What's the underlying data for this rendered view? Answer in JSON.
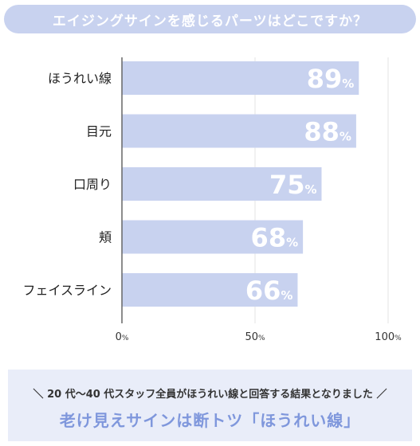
{
  "header": {
    "title": "エイジングサインを感じるパーツはどこですか？"
  },
  "chart_data": {
    "type": "bar",
    "orientation": "horizontal",
    "categories": [
      "ほうれい線",
      "目元",
      "口周り",
      "頬",
      "フェイスライン"
    ],
    "values": [
      89,
      88,
      75,
      68,
      66
    ],
    "value_suffix": "%",
    "xlim": [
      0,
      100
    ],
    "xticks": [
      {
        "value": 0,
        "label": "0",
        "unit": "%"
      },
      {
        "value": 50,
        "label": "50",
        "unit": "%"
      },
      {
        "value": 100,
        "label": "100",
        "unit": "%"
      }
    ],
    "grid": true,
    "colors": {
      "bar": "#c8d2ef",
      "value_text": "#ffffff",
      "grid": "#e3e3e3",
      "axis": "#666666"
    }
  },
  "footer": {
    "subtitle": "＼ 20 代〜40 代スタッフ全員がほうれい線と回答する結果となりました ／",
    "headline": "老け見えサインは断トツ「ほうれい線」"
  }
}
